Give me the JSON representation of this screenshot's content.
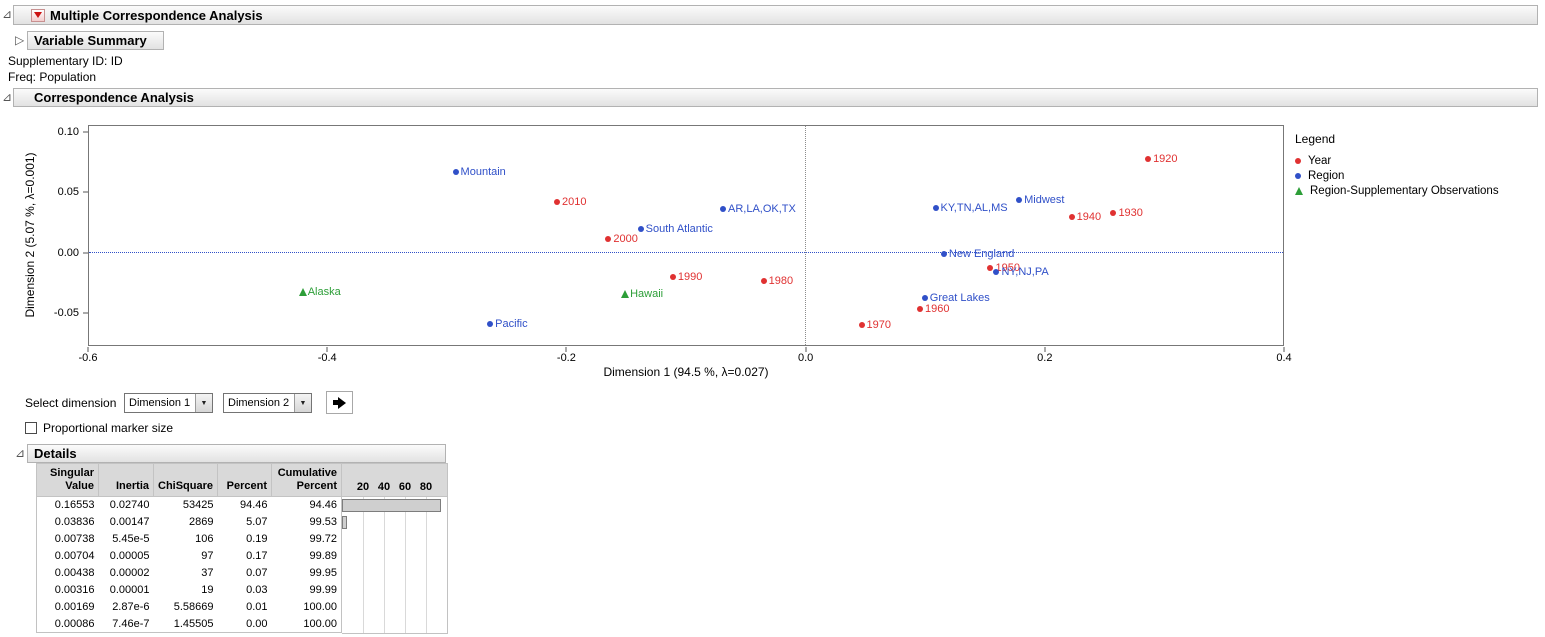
{
  "window": {
    "outline_title": "Multiple Correspondence Analysis",
    "variable_summary_title": "Variable Summary",
    "supplementary_id_text": "Supplementary ID: ID",
    "freq_text": "Freq: Population",
    "correspondence_title": "Correspondence Analysis",
    "details_title": "Details"
  },
  "icons": {
    "open_disclosure": "⊿",
    "closed_disclosure": "▷",
    "combo_arrow": "▼"
  },
  "controls": {
    "select_dimension_label": "Select dimension",
    "dimension_dropdown_1": "Dimension 1",
    "dimension_dropdown_2": "Dimension 2",
    "proportional_marker_label": "Proportional marker size",
    "proportional_marker_checked": false
  },
  "colors": {
    "year": "#e03131",
    "region": "#3050c8",
    "supplementary": "#2d9e38",
    "ref_line_horizontal": "#3050c8",
    "ref_line_vertical": "#8c8c8c",
    "bar_fill": "#cfcfcf",
    "header_gray": "#d9d9d9"
  },
  "chart_data": {
    "type": "scatter",
    "title": "",
    "xlabel": "Dimension 1 (94.5 %, λ=0.027)",
    "ylabel": "Dimension 2 (5.07 %, λ=0.001)",
    "xlim": [
      -0.6,
      0.4
    ],
    "ylim": [
      -0.0775,
      0.1058
    ],
    "grid": false,
    "ref_lines": {
      "x": 0,
      "y": 0
    },
    "x_ticks": [
      {
        "v": -0.6,
        "label": "-0.6"
      },
      {
        "v": -0.4,
        "label": "-0.4"
      },
      {
        "v": -0.2,
        "label": "-0.2"
      },
      {
        "v": 0.0,
        "label": "0.0"
      },
      {
        "v": 0.2,
        "label": "0.2"
      },
      {
        "v": 0.4,
        "label": "0.4"
      }
    ],
    "y_ticks": [
      {
        "v": 0.1,
        "label": "0.10"
      },
      {
        "v": 0.05,
        "label": "0.05"
      },
      {
        "v": 0.0,
        "label": "0.00"
      },
      {
        "v": -0.05,
        "label": "-0.05"
      }
    ],
    "legend": {
      "title": "Legend",
      "position": "right"
    },
    "series": [
      {
        "name": "Year",
        "marker": "circle",
        "color": "#e03131",
        "points": [
          {
            "label": "1920",
            "x": 0.287,
            "y": 0.078
          },
          {
            "label": "1930",
            "x": 0.258,
            "y": 0.033
          },
          {
            "label": "1940",
            "x": 0.223,
            "y": 0.03
          },
          {
            "label": "1950",
            "x": 0.155,
            "y": -0.013
          },
          {
            "label": "1960",
            "x": 0.096,
            "y": -0.047
          },
          {
            "label": "1970",
            "x": 0.047,
            "y": -0.061
          },
          {
            "label": "1980",
            "x": -0.035,
            "y": -0.024
          },
          {
            "label": "1990",
            "x": -0.111,
            "y": -0.021
          },
          {
            "label": "2000",
            "x": -0.165,
            "y": 0.011
          },
          {
            "label": "2010",
            "x": -0.208,
            "y": 0.042
          }
        ]
      },
      {
        "name": "Region",
        "marker": "circle",
        "color": "#3050c8",
        "points": [
          {
            "label": "Mountain",
            "x": -0.293,
            "y": 0.067
          },
          {
            "label": "AR,LA,OK,TX",
            "x": -0.069,
            "y": 0.036
          },
          {
            "label": "South Atlantic",
            "x": -0.138,
            "y": 0.02
          },
          {
            "label": "KY,TN,AL,MS",
            "x": 0.109,
            "y": 0.037
          },
          {
            "label": "Midwest",
            "x": 0.179,
            "y": 0.044
          },
          {
            "label": "New England",
            "x": 0.116,
            "y": -0.001
          },
          {
            "label": "NY,NJ,PA",
            "x": 0.16,
            "y": -0.016
          },
          {
            "label": "Great Lakes",
            "x": 0.1,
            "y": -0.038
          },
          {
            "label": "Pacific",
            "x": -0.264,
            "y": -0.06
          }
        ]
      },
      {
        "name": "Region-Supplementary Observations",
        "marker": "triangle",
        "color": "#2d9e38",
        "points": [
          {
            "label": "Alaska",
            "x": -0.421,
            "y": -0.033
          },
          {
            "label": "Hawaii",
            "x": -0.151,
            "y": -0.035
          }
        ]
      }
    ]
  },
  "details_table": {
    "columns": [
      "Singular\nValue",
      "Inertia",
      "ChiSquare",
      "Percent",
      "Cumulative\nPercent"
    ],
    "bar_axis_ticks": [
      20,
      40,
      60,
      80
    ],
    "bar_axis_max": 100,
    "rows": [
      {
        "cells": [
          "0.16553",
          "0.02740",
          "53425",
          "94.46",
          "94.46"
        ],
        "bar": 94.46
      },
      {
        "cells": [
          "0.03836",
          "0.00147",
          "2869",
          "5.07",
          "99.53"
        ],
        "bar": 5.07
      },
      {
        "cells": [
          "0.00738",
          "5.45e-5",
          "106",
          "0.19",
          "99.72"
        ],
        "bar": 0.19
      },
      {
        "cells": [
          "0.00704",
          "0.00005",
          "97",
          "0.17",
          "99.89"
        ],
        "bar": 0.17
      },
      {
        "cells": [
          "0.00438",
          "0.00002",
          "37",
          "0.07",
          "99.95"
        ],
        "bar": 0.07
      },
      {
        "cells": [
          "0.00316",
          "0.00001",
          "19",
          "0.03",
          "99.99"
        ],
        "bar": 0.03
      },
      {
        "cells": [
          "0.00169",
          "2.87e-6",
          "5.58669",
          "0.01",
          "100.00"
        ],
        "bar": 0.01
      },
      {
        "cells": [
          "0.00086",
          "7.46e-7",
          "1.45505",
          "0.00",
          "100.00"
        ],
        "bar": 0.0
      }
    ]
  }
}
